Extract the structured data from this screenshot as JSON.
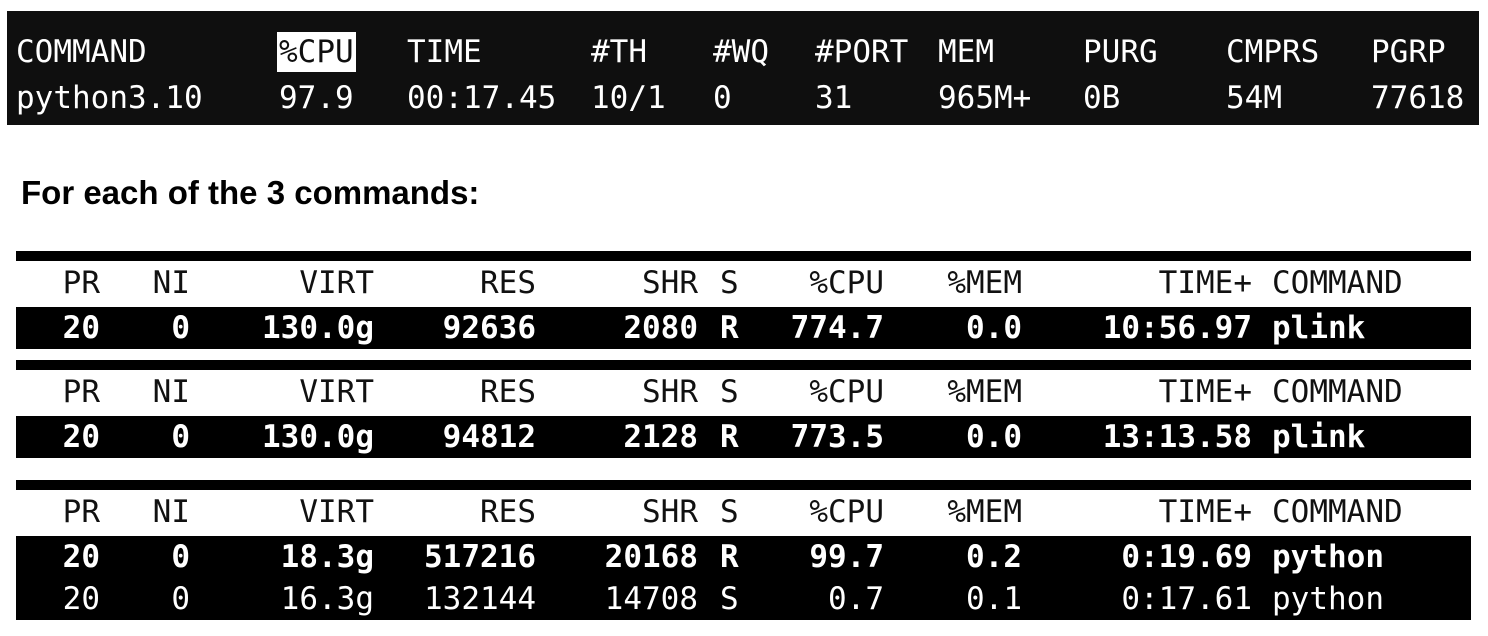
{
  "mac_top": {
    "headers": [
      "COMMAND",
      "%CPU",
      "TIME",
      "#TH",
      "#WQ",
      "#PORT",
      "MEM",
      "PURG",
      "CMPRS",
      "PGRP"
    ],
    "highlighted_header": "%CPU",
    "row": [
      "python3.10",
      "97.9",
      "00:17.45",
      "10/1",
      "0",
      "31",
      "965M+",
      "0B",
      "54M",
      "77618"
    ]
  },
  "caption": "For each of the 3 commands:",
  "linux_top": {
    "headers": [
      "PR",
      "NI",
      "VIRT",
      "RES",
      "SHR",
      "S",
      "%CPU",
      "%MEM",
      "TIME+",
      "COMMAND"
    ],
    "blocks": [
      {
        "rows": [
          {
            "style": "bold",
            "cells": [
              "20",
              "0",
              "130.0g",
              "92636",
              "2080",
              "R",
              "774.7",
              "0.0",
              "10:56.97",
              "plink"
            ]
          }
        ]
      },
      {
        "rows": [
          {
            "style": "bold",
            "cells": [
              "20",
              "0",
              "130.0g",
              "94812",
              "2128",
              "R",
              "773.5",
              "0.0",
              "13:13.58",
              "plink"
            ]
          }
        ]
      },
      {
        "rows": [
          {
            "style": "bold",
            "cells": [
              "20",
              "0",
              "18.3g",
              "517216",
              "20168",
              "R",
              "99.7",
              "0.2",
              "0:19.69",
              "python"
            ]
          },
          {
            "style": "normal",
            "cells": [
              "20",
              "0",
              "16.3g",
              "132144",
              "14708",
              "S",
              "0.7",
              "0.1",
              "0:17.61",
              "python"
            ]
          }
        ]
      }
    ]
  }
}
